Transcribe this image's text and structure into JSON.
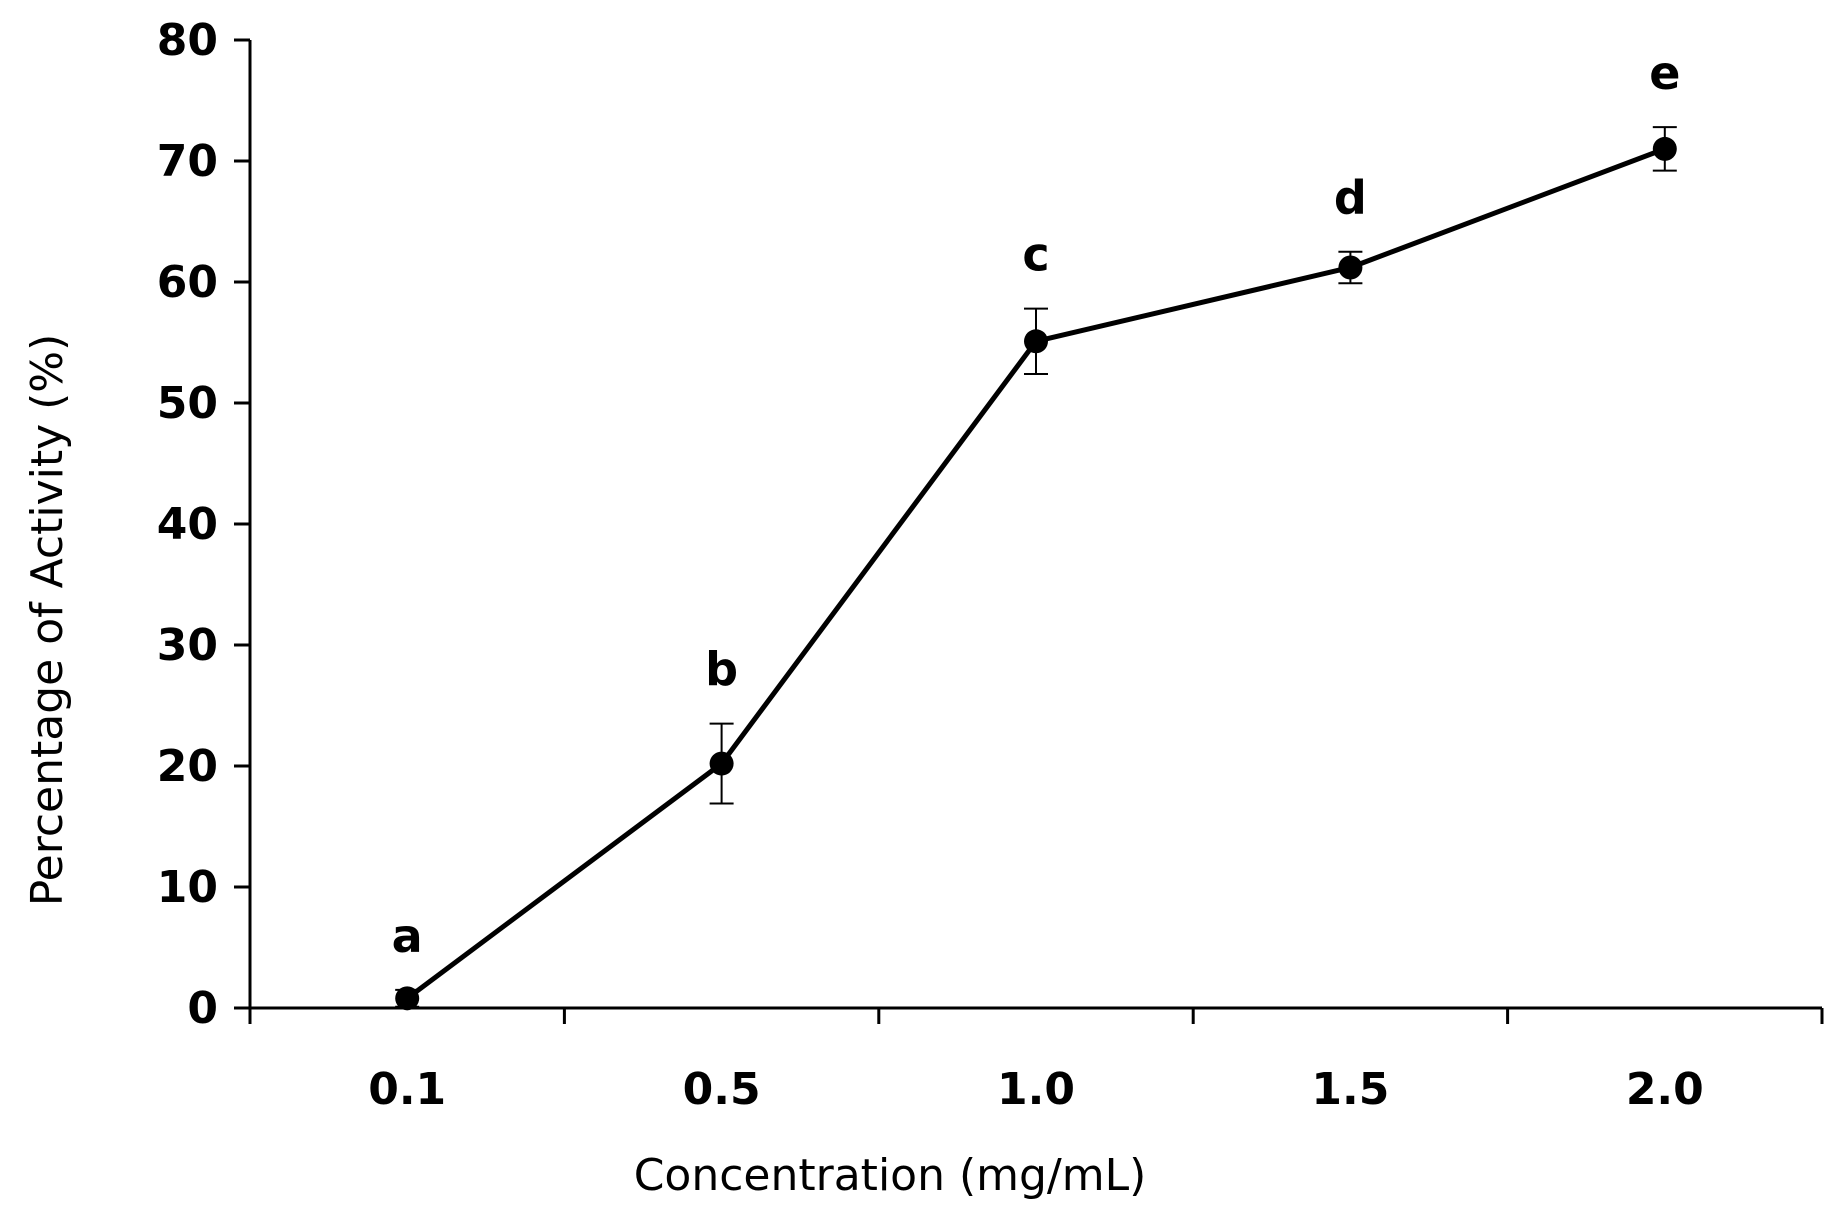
{
  "chart_data": {
    "type": "line",
    "title": "",
    "xlabel": "Concentration (mg/mL)",
    "ylabel": "Percentage of Activity (%)",
    "ylim": [
      0,
      80
    ],
    "yticks": [
      "0",
      "10",
      "20",
      "30",
      "40",
      "50",
      "60",
      "70",
      "80"
    ],
    "categories": [
      "0.1",
      "0.5",
      "1.0",
      "1.5",
      "2.0"
    ],
    "series": [
      {
        "name": "Activity",
        "values": [
          0.8,
          20.2,
          55.1,
          61.2,
          71.0
        ],
        "errors": [
          0.7,
          3.3,
          2.7,
          1.3,
          1.8
        ],
        "point_labels": [
          "a",
          "b",
          "c",
          "d",
          "e"
        ]
      }
    ],
    "grid": false,
    "legend": "none",
    "colors": {
      "line": "#000000",
      "marker": "#000000",
      "axis": "#000000",
      "background": "#ffffff"
    }
  }
}
